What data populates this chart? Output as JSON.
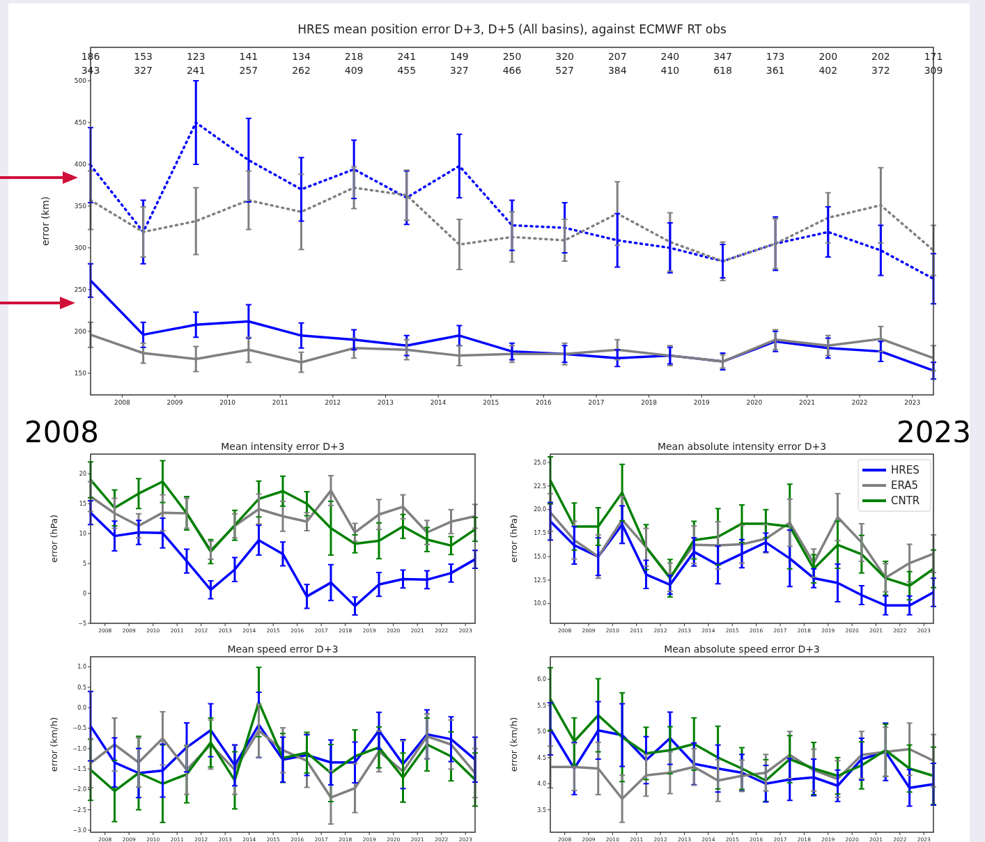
{
  "chart_data": [
    {
      "type": "line",
      "title": "HRES mean position error D+3, D+5 (All basins), against ECMWF RT obs",
      "ylabel": "error (km)",
      "x": [
        2007.4,
        2008.4,
        2009.4,
        2010.4,
        2011.4,
        2012.4,
        2013.4,
        2014.4,
        2015.4,
        2016.4,
        2017.4,
        2018.4,
        2019.4,
        2020.4,
        2021.4,
        2022.4,
        2023.4
      ],
      "xlim": [
        2007.4,
        2023.4
      ],
      "xticks": [
        2008,
        2009,
        2010,
        2011,
        2012,
        2013,
        2014,
        2015,
        2016,
        2017,
        2018,
        2019,
        2020,
        2021,
        2022,
        2023
      ],
      "ylim": [
        124,
        540
      ],
      "yticks": [
        150,
        200,
        250,
        300,
        350,
        400,
        450,
        500
      ],
      "series": [
        {
          "color": "#0000ff",
          "line_style": "solid",
          "values": [
            261,
            196,
            208,
            212,
            195,
            190,
            183,
            195,
            176,
            173,
            168,
            171,
            164,
            188,
            180,
            176,
            153
          ],
          "errors": [
            20,
            15,
            15,
            20,
            15,
            12,
            12,
            12,
            10,
            10,
            10,
            10,
            10,
            12,
            12,
            12,
            10
          ]
        },
        {
          "color": "#808080",
          "line_style": "solid",
          "values": [
            196,
            174,
            167,
            178,
            163,
            180,
            178,
            171,
            173,
            173,
            178,
            171,
            164,
            190,
            183,
            191,
            168
          ],
          "errors": [
            15,
            12,
            15,
            15,
            12,
            12,
            12,
            12,
            10,
            13,
            12,
            12,
            8,
            12,
            12,
            15,
            15
          ]
        },
        {
          "color": "#0000ff",
          "line_style": "dotted",
          "values": [
            399,
            319,
            450,
            405,
            370,
            394,
            360,
            398,
            327,
            324,
            309,
            300,
            284,
            305,
            319,
            297,
            263
          ],
          "errors": [
            45,
            38,
            50,
            50,
            38,
            35,
            32,
            38,
            30,
            30,
            32,
            30,
            20,
            32,
            30,
            30,
            30
          ]
        },
        {
          "color": "#808080",
          "line_style": "dotted",
          "values": [
            357,
            319,
            332,
            357,
            343,
            372,
            363,
            304,
            313,
            309,
            341,
            307,
            284,
            305,
            336,
            351,
            297
          ],
          "errors": [
            35,
            30,
            40,
            35,
            45,
            25,
            30,
            30,
            30,
            25,
            38,
            35,
            23,
            30,
            30,
            45,
            30
          ]
        }
      ],
      "annotations": [
        "186",
        "153",
        "123",
        "141",
        "134",
        "218",
        "241",
        "149",
        "250",
        "320",
        "207",
        "240",
        "347",
        "173",
        "200",
        "202",
        "171",
        "343",
        "327",
        "241",
        "257",
        "262",
        "409",
        "455",
        "327",
        "466",
        "527",
        "384",
        "410",
        "618",
        "361",
        "402",
        "372",
        "309",
        "2008",
        "2023"
      ]
    },
    {
      "type": "line",
      "title": "Mean intensity error D+3",
      "ylabel": "error (hPa)",
      "x": [
        2007.4,
        2008.4,
        2009.4,
        2010.4,
        2011.4,
        2012.4,
        2013.4,
        2014.4,
        2015.4,
        2016.4,
        2017.4,
        2018.4,
        2019.4,
        2020.4,
        2021.4,
        2022.4,
        2023.4
      ],
      "xlim": [
        2007.4,
        2023.4
      ],
      "xticks": [
        2008,
        2009,
        2010,
        2011,
        2012,
        2013,
        2014,
        2015,
        2016,
        2017,
        2018,
        2019,
        2020,
        2021,
        2022,
        2023
      ],
      "ylim": [
        -5,
        23.3
      ],
      "yticks": [
        {
          "value": -5,
          "label": "−5"
        },
        0,
        5,
        10,
        15,
        20
      ],
      "series": [
        {
          "color": "#0000ff",
          "values": [
            13.5,
            9.6,
            10.2,
            10.1,
            5.4,
            0.6,
            4.0,
            8.9,
            6.6,
            -0.5,
            1.8,
            -2.1,
            1.5,
            2.4,
            2.3,
            3.4,
            5.7
          ],
          "errors": [
            2,
            2.5,
            2,
            2.5,
            2,
            1.5,
            2,
            2.5,
            2,
            2,
            3,
            1.5,
            2,
            1.5,
            1.5,
            1.5,
            1.5
          ]
        },
        {
          "color": "#808080",
          "values": [
            16.2,
            13.4,
            11.3,
            13.5,
            13.4,
            7.2,
            11.3,
            14.1,
            12.9,
            12.0,
            17.2,
            10.2,
            13.2,
            14.5,
            10.2,
            12.0,
            12.9
          ],
          "errors": [
            2.5,
            2.5,
            2,
            3,
            2.5,
            1.5,
            2,
            2.5,
            2.5,
            1.5,
            2.5,
            1.5,
            2.5,
            2,
            2,
            2,
            2
          ]
        },
        {
          "color": "#008000",
          "values": [
            19.0,
            14.3,
            16.7,
            18.7,
            13.4,
            7.0,
            11.4,
            15.8,
            17.1,
            15.0,
            10.9,
            8.3,
            8.8,
            11.2,
            9.0,
            8.0,
            10.7
          ],
          "errors": [
            3,
            3,
            2.5,
            3.5,
            2.8,
            2,
            2.5,
            3,
            2.5,
            2,
            4.5,
            1.5,
            3,
            2,
            2,
            1.5,
            2
          ]
        }
      ]
    },
    {
      "type": "line",
      "title": "Mean absolute intensity error D+3",
      "ylabel": "error (hPa)",
      "legend": "top right",
      "x": [
        2007.4,
        2008.4,
        2009.4,
        2010.4,
        2011.4,
        2012.4,
        2013.4,
        2014.4,
        2015.4,
        2016.4,
        2017.4,
        2018.4,
        2019.4,
        2020.4,
        2021.4,
        2022.4,
        2023.4
      ],
      "xlim": [
        2007.4,
        2023.4
      ],
      "xticks": [
        2008,
        2009,
        2010,
        2011,
        2012,
        2013,
        2014,
        2015,
        2016,
        2017,
        2018,
        2019,
        2020,
        2021,
        2022,
        2023
      ],
      "ylim": [
        7.9,
        25.9
      ],
      "yticks": [
        {
          "value": 10,
          "label": "10.0"
        },
        12.5,
        {
          "value": 15,
          "label": "15.0"
        },
        17.5,
        {
          "value": 20,
          "label": "20.0"
        },
        22.5,
        {
          "value": 25,
          "label": "25.0"
        }
      ],
      "series": [
        {
          "name": "HRES",
          "color": "#0000ff",
          "values": [
            18.75,
            16.2,
            15.0,
            18.4,
            13.1,
            12.0,
            15.5,
            14.1,
            15.3,
            16.5,
            14.8,
            12.7,
            12.2,
            10.9,
            9.8,
            9.8,
            11.2
          ],
          "errors": [
            2,
            2,
            2,
            2,
            1.5,
            1,
            1.5,
            2,
            1.5,
            1,
            3,
            1,
            2,
            1,
            1,
            1,
            1.5
          ]
        },
        {
          "name": "ERA5",
          "color": "#808080",
          "values": [
            19.7,
            16.75,
            15.0,
            18.9,
            16.0,
            12.8,
            16.25,
            16.2,
            16.3,
            16.9,
            18.6,
            14.3,
            19.2,
            16.5,
            12.75,
            14.3,
            15.3
          ],
          "errors": [
            2,
            2,
            2.3,
            2.5,
            2,
            1.5,
            2,
            2.5,
            2,
            1.5,
            2.5,
            1.5,
            2.5,
            2,
            1.5,
            2,
            2
          ]
        },
        {
          "name": "CNTR",
          "color": "#008000",
          "values": [
            23.1,
            18.2,
            18.2,
            21.8,
            16.0,
            12.7,
            16.75,
            17.1,
            18.5,
            18.5,
            18.2,
            13.7,
            16.25,
            15.25,
            12.7,
            11.9,
            13.7
          ],
          "errors": [
            2.5,
            2.5,
            2,
            3,
            2.4,
            2,
            2,
            3,
            2,
            1.5,
            4.5,
            1.5,
            2.5,
            2,
            1.8,
            1.5,
            2
          ]
        }
      ]
    },
    {
      "type": "line",
      "title": "Mean speed error D+3",
      "ylabel": "error (km/h)",
      "x": [
        2007.4,
        2008.4,
        2009.4,
        2010.4,
        2011.4,
        2012.4,
        2013.4,
        2014.4,
        2015.4,
        2016.4,
        2017.4,
        2018.4,
        2019.4,
        2020.4,
        2021.4,
        2022.4,
        2023.4
      ],
      "xlim": [
        2007.4,
        2023.4
      ],
      "xticks": [
        2008,
        2009,
        2010,
        2011,
        2012,
        2013,
        2014,
        2015,
        2016,
        2017,
        2018,
        2019,
        2020,
        2021,
        2022,
        2023
      ],
      "ylim": [
        -3.05,
        1.25
      ],
      "yticks": [
        {
          "value": -3,
          "label": "−3.0"
        },
        {
          "value": -2.5,
          "label": "−2.5"
        },
        {
          "value": -2,
          "label": "−2.0"
        },
        {
          "value": -1.5,
          "label": "−1.5"
        },
        {
          "value": -1,
          "label": "−1.0"
        },
        {
          "value": -0.5,
          "label": "−0.5"
        },
        {
          "value": 0,
          "label": "0.0"
        },
        0.5,
        {
          "value": 1,
          "label": "1.0"
        }
      ],
      "series": [
        {
          "color": "#0000ff",
          "values": [
            -0.45,
            -1.34,
            -1.6,
            -1.54,
            -0.97,
            -0.55,
            -1.41,
            -0.42,
            -1.27,
            -1.16,
            -1.34,
            -1.34,
            -0.56,
            -1.38,
            -0.65,
            -0.77,
            -1.27
          ],
          "errors": [
            0.85,
            0.6,
            0.6,
            0.65,
            0.6,
            0.65,
            0.5,
            0.8,
            0.55,
            0.5,
            0.55,
            0.5,
            0.45,
            0.6,
            0.6,
            0.55,
            0.55
          ]
        },
        {
          "color": "#808080",
          "values": [
            -1.36,
            -0.9,
            -1.34,
            -0.75,
            -1.52,
            -0.9,
            -1.52,
            -0.56,
            -1.04,
            -1.3,
            -2.2,
            -1.97,
            -1.07,
            -1.56,
            -0.7,
            -0.9,
            -1.6
          ],
          "errors": [
            0.6,
            0.65,
            0.6,
            0.65,
            0.6,
            0.6,
            0.6,
            0.65,
            0.55,
            0.65,
            0.65,
            0.6,
            0.5,
            0.75,
            0.55,
            0.6,
            0.6
          ]
        },
        {
          "color": "#008000",
          "values": [
            -1.52,
            -2.04,
            -1.6,
            -1.86,
            -1.63,
            -0.85,
            -1.78,
            0.14,
            -1.23,
            -1.1,
            -1.6,
            -1.19,
            -0.97,
            -1.71,
            -0.9,
            -1.19,
            -1.76
          ],
          "errors": [
            0.75,
            0.75,
            0.9,
            0.95,
            0.7,
            0.6,
            0.7,
            0.85,
            0.6,
            0.5,
            0.7,
            0.65,
            0.5,
            0.6,
            0.65,
            0.6,
            0.65
          ]
        }
      ]
    },
    {
      "type": "line",
      "title": "Mean absolute speed error D+3",
      "ylabel": "error (km/h)",
      "x": [
        2007.4,
        2008.4,
        2009.4,
        2010.4,
        2011.4,
        2012.4,
        2013.4,
        2014.4,
        2015.4,
        2016.4,
        2017.4,
        2018.4,
        2019.4,
        2020.4,
        2021.4,
        2022.4,
        2023.4
      ],
      "xlim": [
        2007.4,
        2023.4
      ],
      "xticks": [
        2008,
        2009,
        2010,
        2011,
        2012,
        2013,
        2014,
        2015,
        2016,
        2017,
        2018,
        2019,
        2020,
        2021,
        2022,
        2023
      ],
      "ylim": [
        3.07,
        6.43
      ],
      "yticks": [
        3.5,
        {
          "value": 4,
          "label": "4.0"
        },
        4.5,
        {
          "value": 5,
          "label": "5.0"
        },
        5.5,
        {
          "value": 6,
          "label": "6.0"
        }
      ],
      "series": [
        {
          "color": "#0000ff",
          "values": [
            5.05,
            4.29,
            5.02,
            4.93,
            4.45,
            4.87,
            4.38,
            4.29,
            4.21,
            4.0,
            4.08,
            4.12,
            3.96,
            4.47,
            4.61,
            3.92,
            3.99
          ],
          "errors": [
            0.5,
            0.5,
            0.55,
            0.6,
            0.45,
            0.5,
            0.4,
            0.45,
            0.35,
            0.35,
            0.4,
            0.35,
            0.3,
            0.4,
            0.55,
            0.35,
            0.4
          ]
        },
        {
          "color": "#808080",
          "values": [
            4.32,
            4.32,
            4.29,
            3.71,
            4.16,
            4.21,
            4.32,
            4.06,
            4.15,
            4.21,
            4.55,
            4.26,
            4.09,
            4.55,
            4.61,
            4.66,
            4.44
          ],
          "errors": [
            0.4,
            0.45,
            0.5,
            0.45,
            0.4,
            0.4,
            0.35,
            0.4,
            0.3,
            0.35,
            0.45,
            0.4,
            0.35,
            0.45,
            0.47,
            0.5,
            0.5
          ]
        },
        {
          "color": "#008000",
          "values": [
            5.62,
            4.81,
            5.31,
            4.89,
            4.58,
            4.64,
            4.76,
            4.5,
            4.29,
            4.06,
            4.47,
            4.29,
            4.15,
            4.35,
            4.64,
            4.29,
            4.15
          ],
          "errors": [
            0.6,
            0.45,
            0.7,
            0.85,
            0.5,
            0.45,
            0.5,
            0.6,
            0.4,
            0.4,
            0.45,
            0.5,
            0.35,
            0.45,
            0.5,
            0.45,
            0.55
          ]
        }
      ]
    }
  ]
}
